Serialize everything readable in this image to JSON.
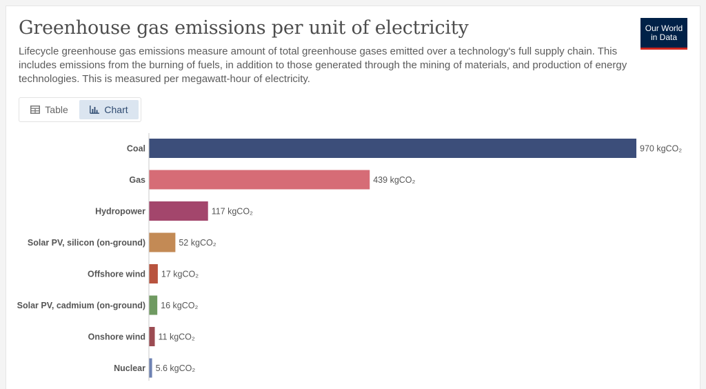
{
  "header": {
    "title": "Greenhouse gas emissions per unit of electricity",
    "subtitle": "Lifecycle greenhouse gas emissions measure amount of total greenhouse gases emitted over a technology's full supply chain. This includes emissions from the burning of fuels, in addition to those generated through the mining of materials, and production of energy technologies. This is measured per megawatt-hour of electricity.",
    "logo_line1": "Our World",
    "logo_line2": "in Data"
  },
  "tabs": [
    {
      "label": "Table",
      "icon": "table-icon",
      "active": false
    },
    {
      "label": "Chart",
      "icon": "bar-chart-icon",
      "active": true
    }
  ],
  "colors": {
    "logo_bg": "#002147",
    "logo_accent": "#ce261e",
    "active_tab_bg": "#dbe5f0"
  },
  "chart_data": {
    "type": "bar",
    "orientation": "horizontal",
    "grid": false,
    "xlim": [
      0,
      970
    ],
    "categories": [
      "Coal",
      "Gas",
      "Hydropower",
      "Solar PV, silicon (on-ground)",
      "Offshore wind",
      "Solar PV, cadmium (on-ground)",
      "Onshore wind",
      "Nuclear"
    ],
    "values": [
      970,
      439,
      117,
      52,
      17,
      16,
      11,
      5.6
    ],
    "value_labels": [
      "970 kgCO₂",
      "439 kgCO₂",
      "117 kgCO₂",
      "52 kgCO₂",
      "17 kgCO₂",
      "16 kgCO₂",
      "11 kgCO₂",
      "5.6 kgCO₂"
    ],
    "bar_colors": [
      "#3c4e7a",
      "#d66c76",
      "#a3466c",
      "#c38a55",
      "#b8533e",
      "#6f9a61",
      "#9b4b52",
      "#6d81b2"
    ]
  }
}
